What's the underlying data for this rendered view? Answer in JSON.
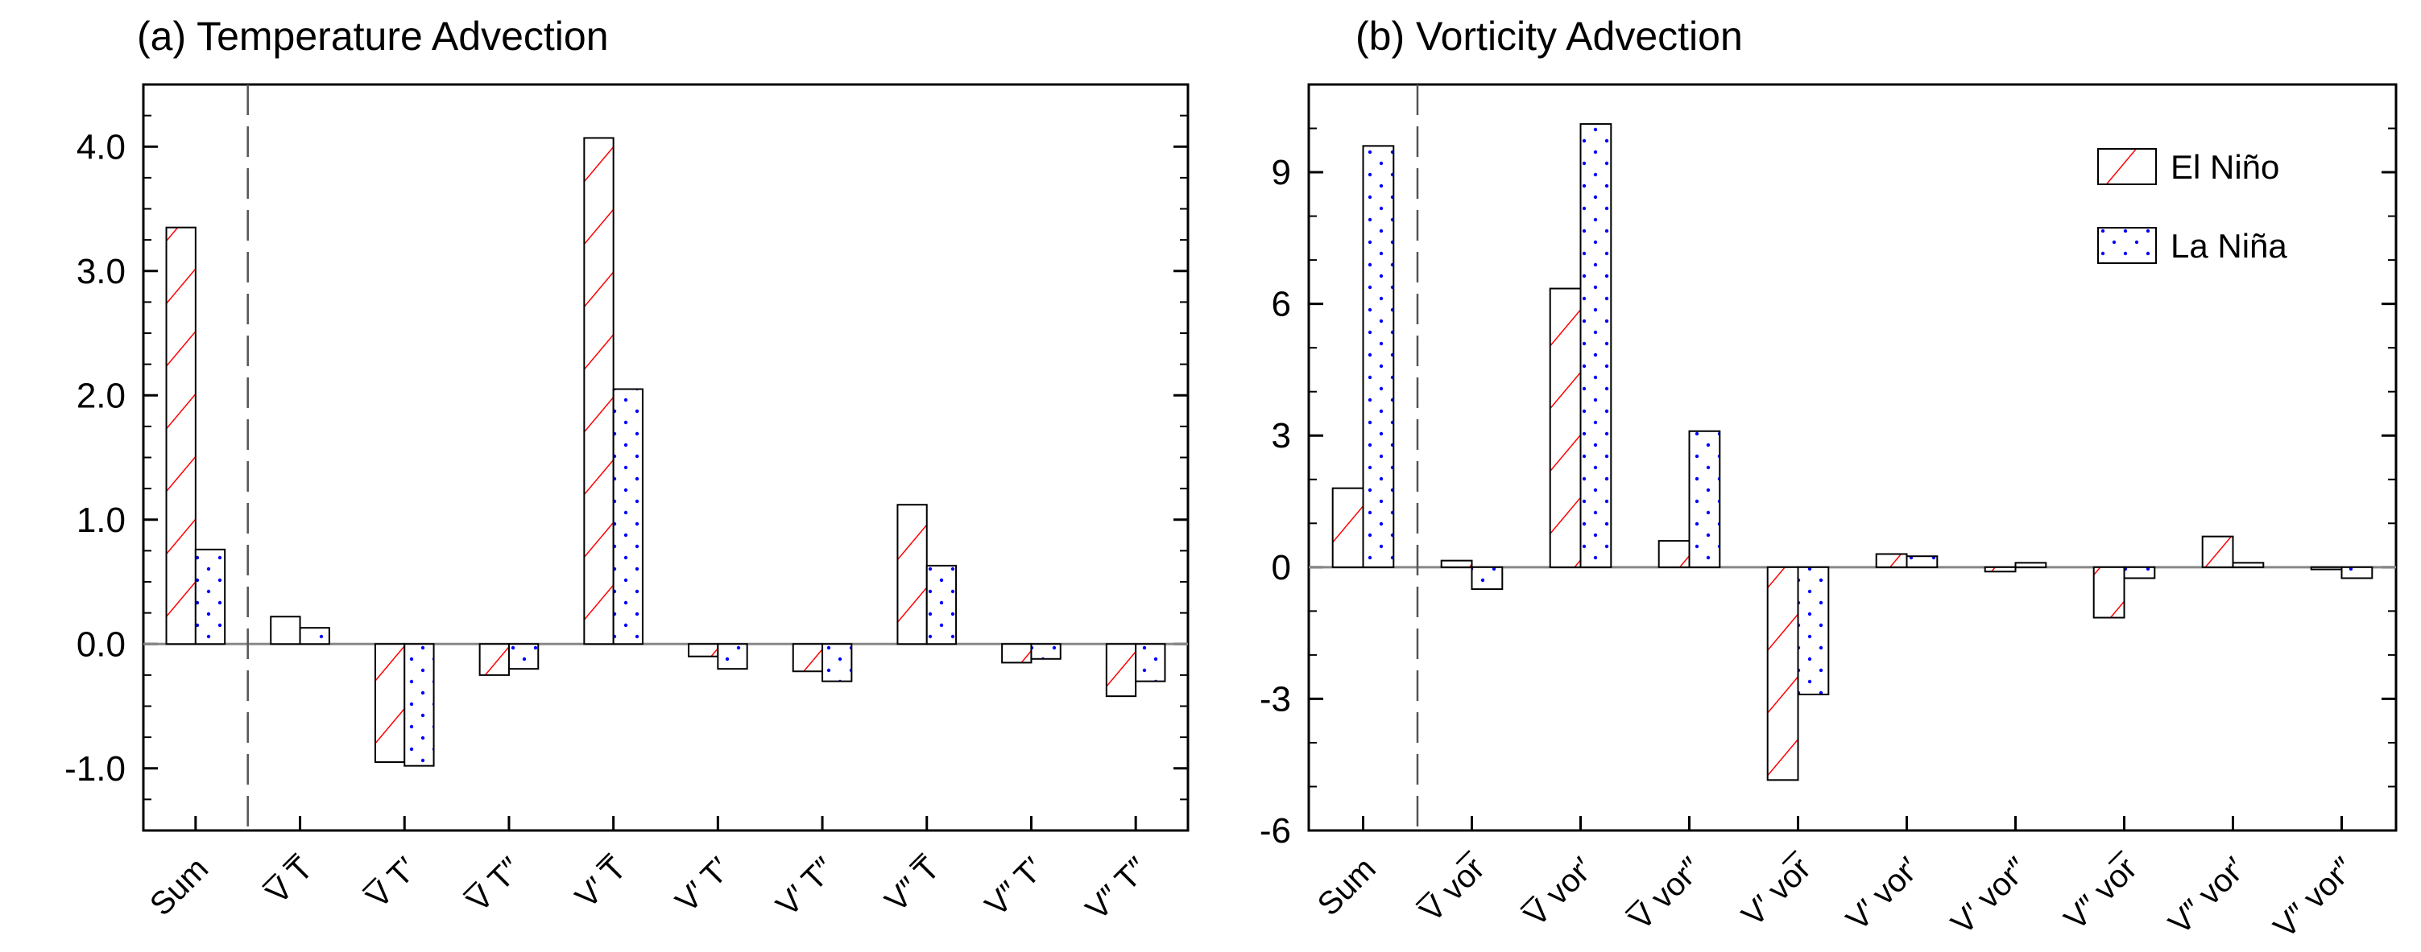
{
  "chart_data": [
    {
      "type": "bar",
      "title": "(a) Temperature Advection",
      "categories": [
        "Sum",
        "V̅ T̅",
        "V̅ T′",
        "V̅ T″",
        "V′ T̅",
        "V′ T′",
        "V′ T″",
        "V″ T̅",
        "V″ T′",
        "V″ T″"
      ],
      "series": [
        {
          "name": "El Niño",
          "values": [
            3.35,
            0.22,
            -0.95,
            -0.25,
            4.07,
            -0.1,
            -0.22,
            1.12,
            -0.15,
            -0.42
          ]
        },
        {
          "name": "La Niña",
          "values": [
            0.76,
            0.13,
            -0.98,
            -0.2,
            2.05,
            -0.2,
            -0.3,
            0.63,
            -0.12,
            -0.3
          ]
        }
      ],
      "ylim": [
        -1.5,
        4.5
      ],
      "yticks": [
        "-1.0",
        "0.0",
        "1.0",
        "2.0",
        "3.0",
        "4.0"
      ],
      "separator_after_category": "Sum",
      "xlabel": "",
      "ylabel": ""
    },
    {
      "type": "bar",
      "title": "(b) Vorticity Advection",
      "categories": [
        "Sum",
        "V̅ vor̅",
        "V̅ vor′",
        "V̅ vor″",
        "V′ vor̅",
        "V′ vor′",
        "V′ vor″",
        "V″ vor̅",
        "V″ vor′",
        "V″ vor″"
      ],
      "series": [
        {
          "name": "El Niño",
          "values": [
            1.8,
            0.15,
            6.35,
            0.6,
            -4.85,
            0.3,
            -0.1,
            -1.15,
            0.7,
            -0.05
          ]
        },
        {
          "name": "La Niña",
          "values": [
            9.6,
            -0.5,
            10.1,
            3.1,
            -2.9,
            0.25,
            0.1,
            -0.25,
            0.1,
            -0.25
          ]
        }
      ],
      "ylim": [
        -6,
        11
      ],
      "yticks": [
        "-6",
        "-3",
        "0",
        "3",
        "6",
        "9"
      ],
      "separator_after_category": "Sum",
      "legend": "top-right",
      "xlabel": "",
      "ylabel": ""
    }
  ],
  "legend": {
    "items": [
      "El Niño",
      "La Niña"
    ]
  },
  "colors": {
    "el_nino_hatch": "#ff0000",
    "la_nina_dots": "#0000ff",
    "outline": "#000000",
    "zero_line": "#888888",
    "separator": "#555555"
  }
}
